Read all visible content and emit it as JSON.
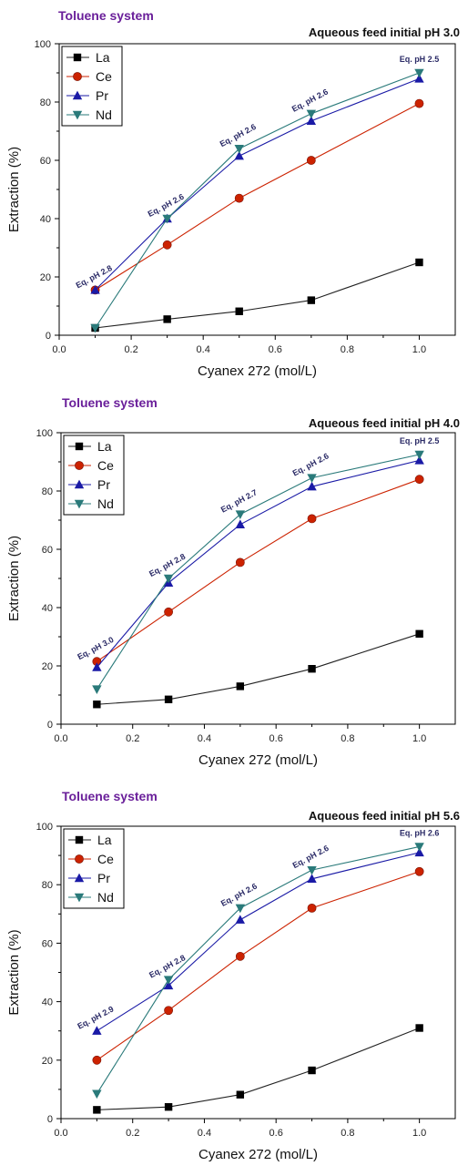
{
  "chart_data": [
    {
      "type": "line",
      "system_title": "Toluene system",
      "title": "Aqueous feed initial pH 3.0",
      "xlabel": "Cyanex 272 (mol/L)",
      "ylabel": "Extraction (%)",
      "xlim": [
        0.0,
        1.1
      ],
      "ylim": [
        0,
        100
      ],
      "xticks": [
        "0.0",
        "0.2",
        "0.4",
        "0.6",
        "0.8",
        "1.0"
      ],
      "yticks": [
        "0",
        "20",
        "40",
        "60",
        "80",
        "100"
      ],
      "legend_position": "top-left",
      "x": [
        0.1,
        0.3,
        0.5,
        0.7,
        1.0
      ],
      "series": [
        {
          "name": "La",
          "marker": "square",
          "color": "#000000",
          "values": [
            2.5,
            5.5,
            8.2,
            12,
            25
          ]
        },
        {
          "name": "Ce",
          "marker": "circle",
          "color": "#cc2200",
          "values": [
            15.5,
            31,
            47,
            60,
            79.5
          ]
        },
        {
          "name": "Pr",
          "marker": "triangle-up",
          "color": "#1a1aa6",
          "values": [
            15.5,
            40,
            61.5,
            73.5,
            88
          ]
        },
        {
          "name": "Nd",
          "marker": "triangle-down",
          "color": "#2a7a7a",
          "values": [
            2.5,
            40,
            64,
            76,
            90
          ]
        }
      ],
      "annotations": [
        {
          "text": "Eq. pH 2.8",
          "x": 0.1
        },
        {
          "text": "Eq. pH 2.6",
          "x": 0.3
        },
        {
          "text": "Eq. pH 2.6",
          "x": 0.5
        },
        {
          "text": "Eq. pH 2.6",
          "x": 0.7
        },
        {
          "text": "Eq. pH 2.5",
          "x": 1.0
        }
      ]
    },
    {
      "type": "line",
      "system_title": "Toluene system",
      "title": "Aqueous feed initial pH 4.0",
      "xlabel": "Cyanex 272 (mol/L)",
      "ylabel": "Extraction (%)",
      "xlim": [
        0.0,
        1.1
      ],
      "ylim": [
        0,
        100
      ],
      "xticks": [
        "0.0",
        "0.2",
        "0.4",
        "0.6",
        "0.8",
        "1.0"
      ],
      "yticks": [
        "0",
        "20",
        "40",
        "60",
        "80",
        "100"
      ],
      "legend_position": "top-left",
      "x": [
        0.1,
        0.3,
        0.5,
        0.7,
        1.0
      ],
      "series": [
        {
          "name": "La",
          "marker": "square",
          "color": "#000000",
          "values": [
            6.8,
            8.5,
            13,
            19,
            31
          ]
        },
        {
          "name": "Ce",
          "marker": "circle",
          "color": "#cc2200",
          "values": [
            21.5,
            38.5,
            55.5,
            70.5,
            84
          ]
        },
        {
          "name": "Pr",
          "marker": "triangle-up",
          "color": "#1a1aa6",
          "values": [
            19.5,
            48.5,
            68.5,
            81.5,
            90.5
          ]
        },
        {
          "name": "Nd",
          "marker": "triangle-down",
          "color": "#2a7a7a",
          "values": [
            12,
            50,
            72,
            84.5,
            92.5
          ]
        }
      ],
      "annotations": [
        {
          "text": "Eq. pH 3.0",
          "x": 0.1
        },
        {
          "text": "Eq. pH 2.8",
          "x": 0.3
        },
        {
          "text": "Eq. pH 2.7",
          "x": 0.5
        },
        {
          "text": "Eq. pH 2.6",
          "x": 0.7
        },
        {
          "text": "Eq. pH 2.5",
          "x": 1.0
        }
      ]
    },
    {
      "type": "line",
      "system_title": "Toluene system",
      "title": "Aqueous feed initial pH 5.6",
      "xlabel": "Cyanex 272 (mol/L)",
      "ylabel": "Extraction (%)",
      "xlim": [
        0.0,
        1.1
      ],
      "ylim": [
        0,
        100
      ],
      "xticks": [
        "0.0",
        "0.2",
        "0.4",
        "0.6",
        "0.8",
        "1.0"
      ],
      "yticks": [
        "0",
        "20",
        "40",
        "60",
        "80",
        "100"
      ],
      "legend_position": "top-left",
      "x": [
        0.1,
        0.3,
        0.5,
        0.7,
        1.0
      ],
      "series": [
        {
          "name": "La",
          "marker": "square",
          "color": "#000000",
          "values": [
            3,
            4,
            8.2,
            16.5,
            31
          ]
        },
        {
          "name": "Ce",
          "marker": "circle",
          "color": "#cc2200",
          "values": [
            20,
            37,
            55.5,
            72,
            84.5
          ]
        },
        {
          "name": "Pr",
          "marker": "triangle-up",
          "color": "#1a1aa6",
          "values": [
            30,
            45.5,
            68,
            82,
            91
          ]
        },
        {
          "name": "Nd",
          "marker": "triangle-down",
          "color": "#2a7a7a",
          "values": [
            8.5,
            47.5,
            72,
            85,
            93
          ]
        }
      ],
      "annotations": [
        {
          "text": "Eq. pH 2.9",
          "x": 0.1
        },
        {
          "text": "Eq. pH 2.8",
          "x": 0.3
        },
        {
          "text": "Eq. pH 2.6",
          "x": 0.5
        },
        {
          "text": "Eq. pH 2.6",
          "x": 0.7
        },
        {
          "text": "Eq. pH 2.6",
          "x": 1.0
        }
      ]
    }
  ]
}
